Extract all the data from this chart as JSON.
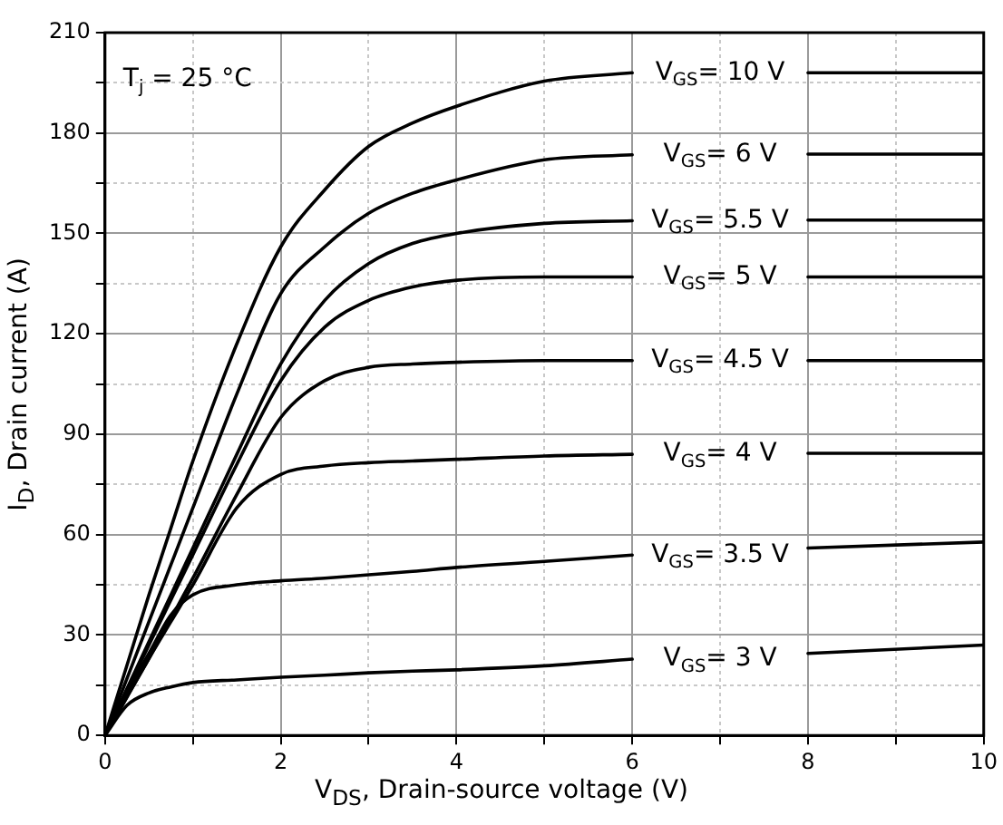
{
  "chart_data": {
    "type": "line",
    "xlabel": "V$_{DS}$, Drain-source voltage (V)",
    "ylabel": "I$_{D}$, Drain current (A)",
    "annotations": [
      "T$_{j}$ = 25 °C"
    ],
    "x": [
      0,
      0.25,
      0.5,
      0.75,
      1,
      1.5,
      2,
      2.5,
      3,
      3.5,
      4,
      5,
      6,
      7,
      8,
      10
    ],
    "xlim": [
      0,
      10
    ],
    "xticks": [
      0,
      {
        "value": 1,
        "label": null
      },
      2,
      {
        "value": 3,
        "label": null
      },
      4,
      {
        "value": 5,
        "label": null
      },
      6,
      {
        "value": 7,
        "label": null
      },
      8,
      {
        "value": 9,
        "label": null
      },
      10
    ],
    "ylim": [
      0,
      210
    ],
    "yticks": [
      0,
      {
        "value": 15,
        "label": null
      },
      30,
      {
        "value": 45,
        "label": null
      },
      60,
      {
        "value": 75,
        "label": null
      },
      90,
      {
        "value": 105,
        "label": null
      },
      120,
      {
        "value": 135,
        "label": null
      },
      150,
      {
        "value": 165,
        "label": null
      },
      180,
      {
        "value": 195,
        "label": null
      },
      210
    ],
    "grid": true,
    "legend": false,
    "marker": "none",
    "line_style": "solid",
    "series": [
      {
        "name": "V$_{GS}$= 10 V",
        "color": "#000000",
        "values": [
          0,
          21,
          42,
          62,
          82,
          117,
          146,
          163,
          176,
          183,
          188,
          195.5,
          198,
          null,
          198,
          198
        ]
      },
      {
        "name": "V$_{GS}$= 6 V",
        "color": "#000000",
        "values": [
          0,
          17,
          34,
          51,
          68,
          102,
          132,
          146,
          156,
          162,
          166,
          172,
          173.5,
          null,
          173.7,
          173.7
        ]
      },
      {
        "name": "V$_{GS}$= 5.5 V",
        "color": "#000000",
        "values": [
          0,
          14,
          28,
          42,
          56,
          84,
          111,
          130,
          141,
          147,
          150,
          153,
          153.8,
          null,
          154,
          154
        ]
      },
      {
        "name": "V$_{GS}$= 5 V",
        "color": "#000000",
        "values": [
          0,
          13.5,
          27,
          40.5,
          54,
          81,
          106,
          122,
          130,
          134,
          136,
          137,
          137,
          null,
          137,
          137
        ]
      },
      {
        "name": "V$_{GS}$= 4.5 V",
        "color": "#000000",
        "values": [
          0,
          11.5,
          23,
          35,
          47,
          72,
          95,
          106,
          110,
          111,
          111.5,
          112,
          112,
          null,
          112,
          112
        ]
      },
      {
        "name": "V$_{GS}$= 4 V",
        "color": "#000000",
        "values": [
          0,
          11.5,
          23,
          34,
          45,
          68,
          78,
          80.5,
          81.5,
          82,
          82.5,
          83.5,
          84,
          null,
          84.3,
          84.3
        ]
      },
      {
        "name": "V$_{GS}$= 3.5 V",
        "color": "#000000",
        "values": [
          0,
          13,
          24.5,
          36,
          42,
          45,
          46.2,
          47,
          48,
          49,
          50.2,
          52,
          53.9,
          null,
          56,
          57.8
        ]
      },
      {
        "name": "V$_{GS}$= 3 V",
        "color": "#000000",
        "values": [
          0,
          9,
          12.7,
          14.5,
          15.8,
          16.6,
          17.4,
          18,
          18.7,
          19.2,
          19.6,
          20.8,
          22.8,
          null,
          24.5,
          27
        ]
      }
    ]
  }
}
